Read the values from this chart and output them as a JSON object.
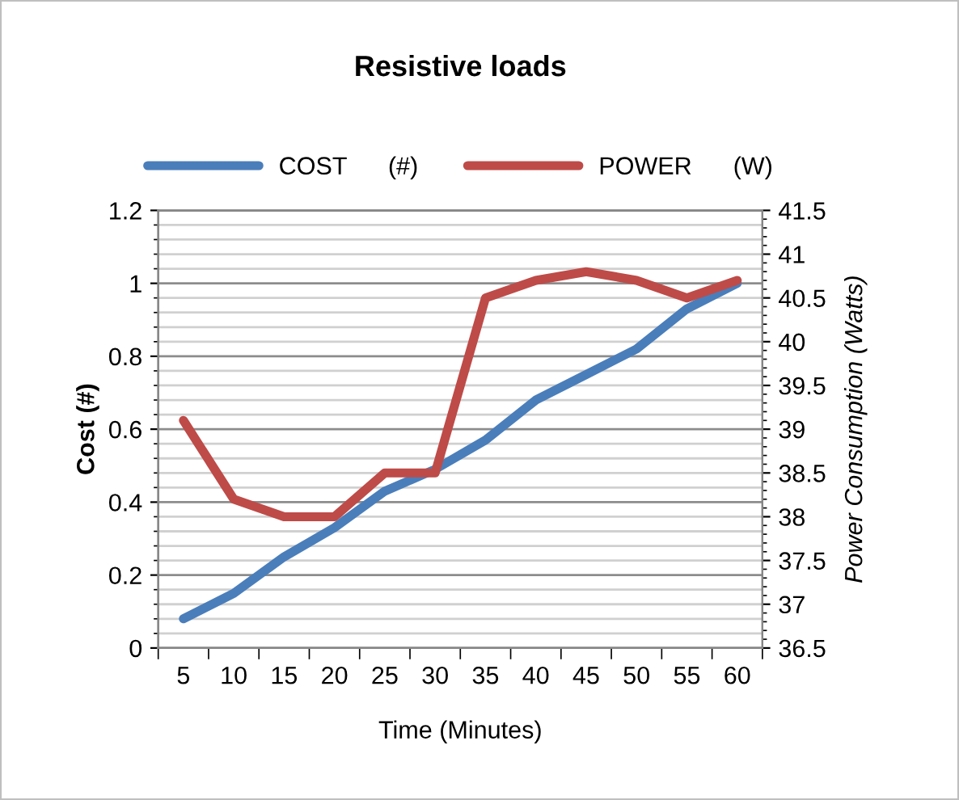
{
  "chart_data": {
    "type": "line",
    "title": "Resistive loads",
    "xlabel": "Time (Minutes)",
    "ylabel": "Cost (#)",
    "y2label": "Power Consumption (Watts)",
    "categories": [
      "5",
      "10",
      "15",
      "20",
      "25",
      "30",
      "35",
      "40",
      "45",
      "50",
      "55",
      "60"
    ],
    "series": [
      {
        "name": "COST      (#)",
        "color": "#4a7ebb",
        "values": [
          0.08,
          0.15,
          0.25,
          0.33,
          0.43,
          0.49,
          0.57,
          0.68,
          0.75,
          0.82,
          0.93,
          1.0
        ]
      },
      {
        "name": "POWER      (W)",
        "color": "#be4b48",
        "axis": "y2",
        "values": [
          39.1,
          38.2,
          38.0,
          38.0,
          38.5,
          38.5,
          40.5,
          40.7,
          40.8,
          40.7,
          40.5,
          40.7
        ]
      }
    ],
    "ylim": [
      0,
      1.2
    ],
    "yticks": [
      0,
      0.2,
      0.4,
      0.6,
      0.8,
      1,
      1.2
    ],
    "y2lim": [
      36.5,
      41.5
    ],
    "y2ticks": [
      36.5,
      37,
      37.5,
      38,
      38.5,
      39,
      39.5,
      40,
      40.5,
      41,
      41.5
    ],
    "grid": "y",
    "legend": "top",
    "marker": "none",
    "line_style": "solid"
  }
}
